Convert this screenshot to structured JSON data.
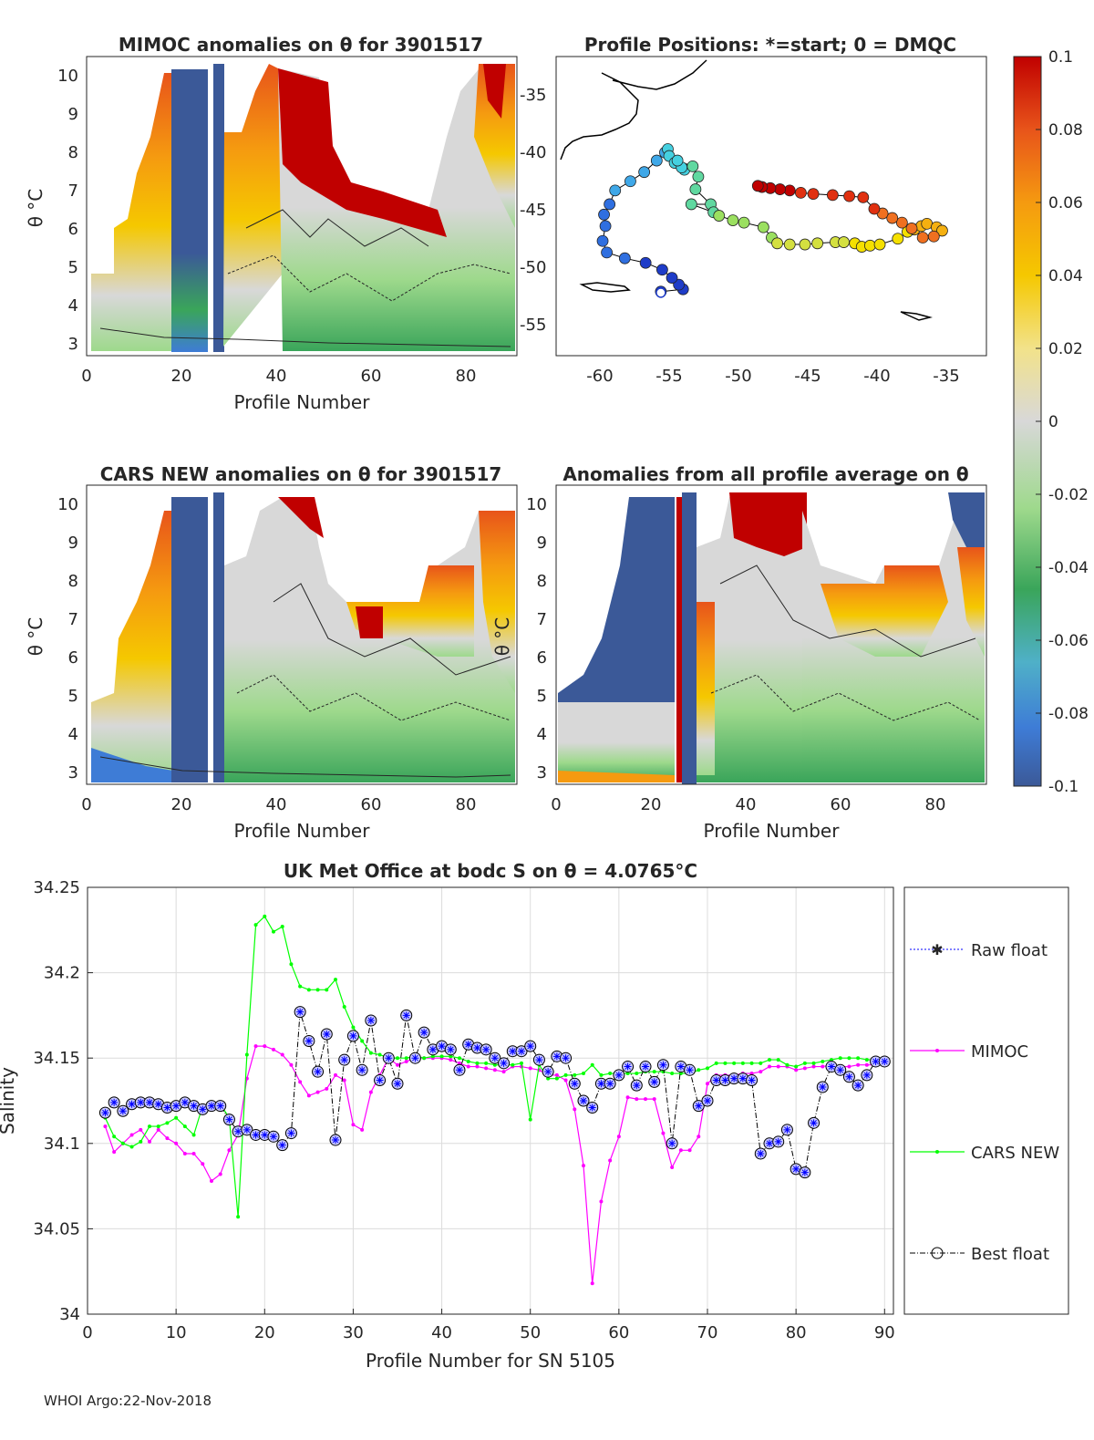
{
  "panels": {
    "p1": {
      "title": "MIMOC anomalies on θ  for 3901517",
      "xlabel": "Profile Number",
      "ylabel": "θ °C",
      "xticks": [
        "0",
        "20",
        "40",
        "60",
        "80"
      ],
      "yticks": [
        "3",
        "4",
        "5",
        "6",
        "7",
        "8",
        "9",
        "10"
      ]
    },
    "p2": {
      "title": "Profile Positions: *=start; 0 = DMQC",
      "xticks": [
        "-60",
        "-55",
        "-50",
        "-45",
        "-40",
        "-35"
      ],
      "yticks": [
        "-35",
        "-40",
        "-45",
        "-50",
        "-55"
      ]
    },
    "p3": {
      "title": "CARS NEW anomalies on θ for 3901517",
      "xlabel": "Profile Number",
      "ylabel": "θ °C",
      "xticks": [
        "0",
        "20",
        "40",
        "60",
        "80"
      ],
      "yticks": [
        "3",
        "4",
        "5",
        "6",
        "7",
        "8",
        "9",
        "10"
      ]
    },
    "p4": {
      "title": "Anomalies from all profile average on θ",
      "xlabel": "Profile Number",
      "ylabel": "θ °C",
      "xticks": [
        "0",
        "20",
        "40",
        "60",
        "80"
      ],
      "yticks": [
        "3",
        "4",
        "5",
        "6",
        "7",
        "8",
        "9",
        "10"
      ]
    }
  },
  "colorbar": {
    "ticks": [
      "0.1",
      "0.08",
      "0.06",
      "0.04",
      "0.02",
      "0",
      "-0.02",
      "-0.04",
      "-0.06",
      "-0.08",
      "-0.1"
    ],
    "colors": [
      "#3b5998",
      "#3e7cd6",
      "#4fb0c8",
      "#3aa55a",
      "#9ed98c",
      "#d8d8d8",
      "#f2e28a",
      "#f5c800",
      "#f59a10",
      "#e8541a",
      "#c00000"
    ]
  },
  "map_track": {
    "start_lon": -55.6,
    "start_lat": -52.3,
    "lon": [
      -55.6,
      -54,
      -54.3,
      -54.8,
      -55.5,
      -56.7,
      -58.2,
      -59.5,
      -59.8,
      -59.6,
      -59.7,
      -59.3,
      -58.9,
      -57.8,
      -56.8,
      -55.9,
      -55.3,
      -55.1,
      -55.0,
      -54.6,
      -53.9,
      -54.1,
      -54.4,
      -53.3,
      -52.9,
      -53.1,
      -52.0,
      -53.4,
      -51.8,
      -51.4,
      -50.4,
      -49.6,
      -48.2,
      -47.6,
      -47.2,
      -46.3,
      -45.2,
      -44.3,
      -43.0,
      -42.4,
      -41.6,
      -41.1,
      -40.5,
      -39.8,
      -38.5,
      -37.8,
      -37.3,
      -36.8,
      -36.4,
      -35.7,
      -35.3,
      -35.9,
      -36.7,
      -37.5,
      -38.2,
      -38.9,
      -39.6,
      -40.2,
      -41.0,
      -42.0,
      -43.2,
      -44.6,
      -45.5,
      -46.3,
      -47.0,
      -47.7,
      -48.3,
      -48.6
    ],
    "lat": [
      -52.2,
      -52.0,
      -51.6,
      -51.0,
      -50.3,
      -49.7,
      -49.3,
      -48.8,
      -47.8,
      -46.5,
      -45.5,
      -44.6,
      -43.4,
      -42.6,
      -41.8,
      -40.8,
      -40.1,
      -39.8,
      -40.4,
      -41.0,
      -41.6,
      -41.4,
      -40.8,
      -41.3,
      -42.2,
      -43.3,
      -44.6,
      -44.6,
      -45.3,
      -45.6,
      -46.0,
      -46.2,
      -46.6,
      -47.5,
      -48.0,
      -48.1,
      -48.1,
      -48.0,
      -47.9,
      -47.9,
      -48.0,
      -48.3,
      -48.2,
      -48.1,
      -47.6,
      -47.0,
      -46.8,
      -46.5,
      -46.3,
      -46.6,
      -46.9,
      -47.4,
      -47.5,
      -46.7,
      -46.2,
      -45.8,
      -45.4,
      -45.0,
      -44.0,
      -43.9,
      -43.8,
      -43.7,
      -43.6,
      -43.4,
      -43.3,
      -43.2,
      -43.1,
      -43.0
    ]
  },
  "chart_data": {
    "type": "line",
    "title": "UK Met Office at bodc S on θ = 4.0765°C",
    "xlabel": "Profile Number for SN 5105",
    "ylabel": "Salinity",
    "xlim": [
      0,
      91
    ],
    "ylim": [
      34,
      34.25
    ],
    "xticks": [
      "0",
      "10",
      "20",
      "30",
      "40",
      "50",
      "60",
      "70",
      "80",
      "90"
    ],
    "yticks": [
      "34",
      "34.05",
      "34.1",
      "34.15",
      "34.2",
      "34.25"
    ],
    "footer": "WHOI Argo:22-Nov-2018",
    "legend": [
      "Raw float",
      "MIMOC",
      "CARS NEW",
      "Best float"
    ],
    "x": [
      2,
      3,
      4,
      5,
      6,
      7,
      8,
      9,
      10,
      11,
      12,
      13,
      14,
      15,
      16,
      17,
      18,
      19,
      20,
      21,
      22,
      23,
      24,
      25,
      26,
      27,
      28,
      29,
      30,
      31,
      32,
      33,
      34,
      35,
      36,
      37,
      38,
      39,
      40,
      41,
      42,
      43,
      44,
      45,
      46,
      47,
      48,
      49,
      50,
      51,
      52,
      53,
      54,
      55,
      56,
      57,
      58,
      59,
      60,
      61,
      62,
      63,
      64,
      65,
      66,
      67,
      68,
      69,
      70,
      71,
      72,
      73,
      74,
      75,
      76,
      77,
      78,
      79,
      80,
      81,
      82,
      83,
      84,
      85,
      86,
      87,
      88,
      89,
      90
    ],
    "series": [
      {
        "name": "Raw float",
        "color": "#0000ff",
        "values": [
          34.118,
          34.124,
          34.119,
          34.123,
          34.124,
          34.124,
          34.123,
          34.121,
          34.122,
          34.124,
          34.122,
          34.12,
          34.122,
          34.122,
          34.114,
          34.107,
          34.108,
          34.105,
          34.105,
          34.104,
          34.099,
          34.106,
          34.177,
          34.16,
          34.142,
          34.164,
          34.102,
          34.149,
          34.163,
          34.143,
          34.172,
          34.137,
          34.15,
          34.135,
          34.175,
          34.15,
          34.165,
          34.155,
          34.157,
          34.155,
          34.143,
          34.158,
          34.156,
          34.155,
          34.15,
          34.147,
          34.154,
          34.154,
          34.157,
          34.149,
          34.142,
          34.151,
          34.15,
          34.135,
          34.125,
          34.121,
          34.135,
          34.135,
          34.14,
          34.145,
          34.134,
          34.145,
          34.136,
          34.146,
          34.1,
          34.145,
          34.143,
          34.122,
          34.125,
          34.137,
          34.137,
          34.138,
          34.138,
          34.137,
          34.094,
          34.1,
          34.101,
          34.108,
          34.085,
          34.083,
          34.112,
          34.133,
          34.145,
          34.143,
          34.139,
          34.134,
          34.14,
          34.148,
          34.148
        ]
      },
      {
        "name": "MIMOC",
        "color": "#ff00ff",
        "values": [
          34.11,
          34.095,
          34.1,
          34.105,
          34.108,
          34.101,
          34.108,
          34.103,
          34.1,
          34.094,
          34.094,
          34.088,
          34.078,
          34.082,
          34.096,
          34.105,
          34.138,
          34.157,
          34.157,
          34.155,
          34.152,
          34.146,
          34.136,
          34.128,
          34.13,
          34.132,
          34.14,
          34.137,
          34.111,
          34.108,
          34.13,
          34.14,
          34.15,
          34.146,
          34.148,
          34.15,
          34.15,
          34.15,
          34.15,
          34.149,
          34.147,
          34.145,
          34.145,
          34.144,
          34.143,
          34.142,
          34.145,
          34.145,
          34.144,
          34.143,
          34.14,
          34.14,
          34.137,
          34.12,
          34.087,
          34.018,
          34.066,
          34.09,
          34.104,
          34.127,
          34.126,
          34.126,
          34.126,
          34.106,
          34.086,
          34.096,
          34.096,
          34.104,
          34.135,
          34.14,
          34.14,
          34.14,
          34.141,
          34.141,
          34.142,
          34.145,
          34.145,
          34.145,
          34.143,
          34.144,
          34.145,
          34.145,
          34.146,
          34.145,
          34.145,
          34.146,
          34.146,
          34.146,
          34.148
        ]
      },
      {
        "name": "CARS NEW",
        "color": "#00ff00",
        "values": [
          34.115,
          34.104,
          34.1,
          34.098,
          34.101,
          34.11,
          34.11,
          34.112,
          34.115,
          34.11,
          34.105,
          34.122,
          34.123,
          34.123,
          34.115,
          34.057,
          34.152,
          34.228,
          34.233,
          34.224,
          34.227,
          34.205,
          34.192,
          34.19,
          34.19,
          34.19,
          34.196,
          34.18,
          34.168,
          34.16,
          34.153,
          34.152,
          34.15,
          34.15,
          34.15,
          34.151,
          34.15,
          34.151,
          34.151,
          34.151,
          34.15,
          34.148,
          34.147,
          34.147,
          34.146,
          34.146,
          34.146,
          34.147,
          34.114,
          34.146,
          34.138,
          34.138,
          34.14,
          34.14,
          34.141,
          34.146,
          34.14,
          34.141,
          34.141,
          34.141,
          34.141,
          34.142,
          34.142,
          34.142,
          34.141,
          34.141,
          34.141,
          34.143,
          34.144,
          34.147,
          34.147,
          34.147,
          34.147,
          34.147,
          34.147,
          34.149,
          34.149,
          34.146,
          34.145,
          34.147,
          34.147,
          34.148,
          34.149,
          34.15,
          34.15,
          34.15,
          34.149,
          34.149,
          34.149
        ]
      }
    ]
  }
}
